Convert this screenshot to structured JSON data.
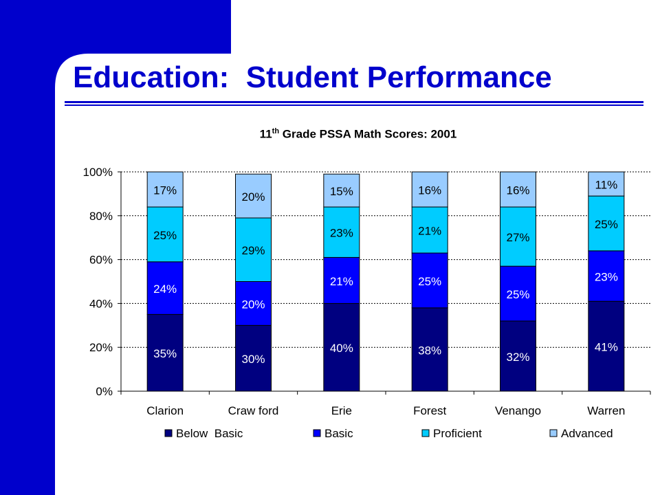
{
  "slide": {
    "title": "Education:  Student Performance",
    "colors": {
      "sidebar": "#0000CC",
      "title": "#0000CC",
      "rule": "#0000CC"
    }
  },
  "chart_data": {
    "type": "bar",
    "stacked": true,
    "title_main": "11",
    "title_sup": "th",
    "title_rest": " Grade PSSA Math Scores: 2001",
    "categories": [
      "Clarion",
      "Craw ford",
      "Erie",
      "Forest",
      "Venango",
      "Warren"
    ],
    "series": [
      {
        "name": "Below  Basic",
        "color": "#000080",
        "label_color": "#ffffff",
        "values": [
          35,
          30,
          40,
          38,
          32,
          41
        ]
      },
      {
        "name": "Basic",
        "color": "#0000FF",
        "label_color": "#ffffff",
        "values": [
          24,
          20,
          21,
          25,
          25,
          23
        ]
      },
      {
        "name": "Proficient",
        "color": "#00CCFF",
        "label_color": "#000000",
        "values": [
          25,
          29,
          23,
          21,
          27,
          25
        ]
      },
      {
        "name": "Advanced",
        "color": "#99CCFF",
        "label_color": "#000000",
        "values": [
          17,
          20,
          15,
          16,
          16,
          11
        ]
      }
    ],
    "ylim": [
      0,
      100
    ],
    "yticks": [
      0,
      20,
      40,
      60,
      80,
      100
    ],
    "ytick_labels": [
      "0%",
      "20%",
      "40%",
      "60%",
      "80%",
      "100%"
    ],
    "value_suffix": "%",
    "grid": "horizontal-dashed",
    "legend_position": "bottom",
    "xlabel": "",
    "ylabel": ""
  }
}
